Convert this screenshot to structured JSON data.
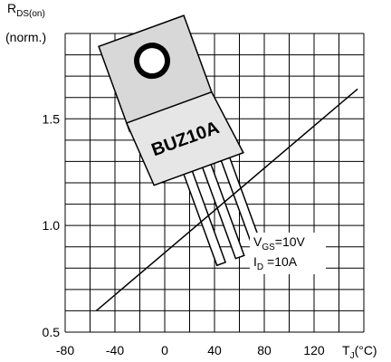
{
  "chart_data": {
    "type": "line",
    "ylabel": {
      "main": "R",
      "sub": "DS(on)",
      "line2": "(norm.)"
    },
    "xlabel": {
      "main": "T",
      "sub": "J",
      "unit": "(°C)"
    },
    "package_label": "BUZ10A",
    "annotations": [
      {
        "main": "V",
        "sub": "GS",
        "rest": "=10V"
      },
      {
        "main": "I",
        "sub": "D",
        "rest": " =10A"
      }
    ],
    "series": [
      {
        "color": "#000000",
        "x": [
          -55,
          155
        ],
        "values": [
          0.6,
          1.64
        ]
      }
    ],
    "xlim": [
      -80,
      160
    ],
    "ylim": [
      0.5,
      1.9
    ],
    "xticks": [
      -80,
      -40,
      0,
      40,
      80,
      120
    ],
    "yticks": [
      {
        "value": 0.5,
        "label": "0.5"
      },
      {
        "value": 1.0,
        "label": "1.0"
      },
      {
        "value": 1.5,
        "label": "1.5"
      }
    ],
    "xgrid": [
      -80,
      -60,
      -40,
      -20,
      0,
      20,
      40,
      60,
      80,
      100,
      120,
      140,
      160
    ],
    "ygrid": [
      0.5,
      0.6,
      0.7,
      0.8,
      0.9,
      1.0,
      1.1,
      1.2,
      1.3,
      1.4,
      1.5,
      1.6,
      1.7,
      1.8,
      1.9
    ],
    "grid": true
  }
}
